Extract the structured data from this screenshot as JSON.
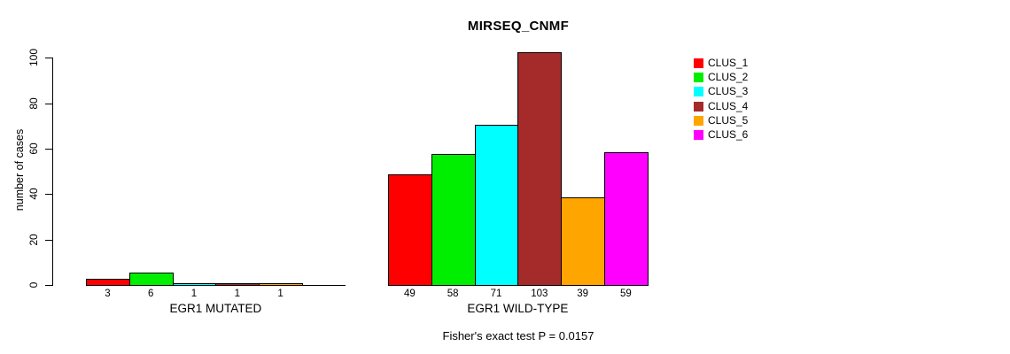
{
  "chart_data": {
    "type": "bar",
    "title": "MIRSEQ_CNMF",
    "ylabel": "number of cases",
    "xlabel": "",
    "ylim": [
      0,
      100
    ],
    "yticks": [
      0,
      20,
      40,
      60,
      80,
      100
    ],
    "grid": false,
    "legend_position": "right",
    "series": [
      {
        "name": "CLUS_1",
        "color": "#FF0000"
      },
      {
        "name": "CLUS_2",
        "color": "#00EE00"
      },
      {
        "name": "CLUS_3",
        "color": "#00FFFF"
      },
      {
        "name": "CLUS_4",
        "color": "#A52A2A"
      },
      {
        "name": "CLUS_5",
        "color": "#FFA500"
      },
      {
        "name": "CLUS_6",
        "color": "#FF00FF"
      }
    ],
    "groups": [
      {
        "label": "EGR1 MUTATED",
        "values": [
          3,
          6,
          1,
          1,
          1,
          0
        ]
      },
      {
        "label": "EGR1 WILD-TYPE",
        "values": [
          49,
          58,
          71,
          103,
          39,
          59
        ]
      }
    ],
    "annotation": "Fisher's exact test P = 0.0157"
  }
}
